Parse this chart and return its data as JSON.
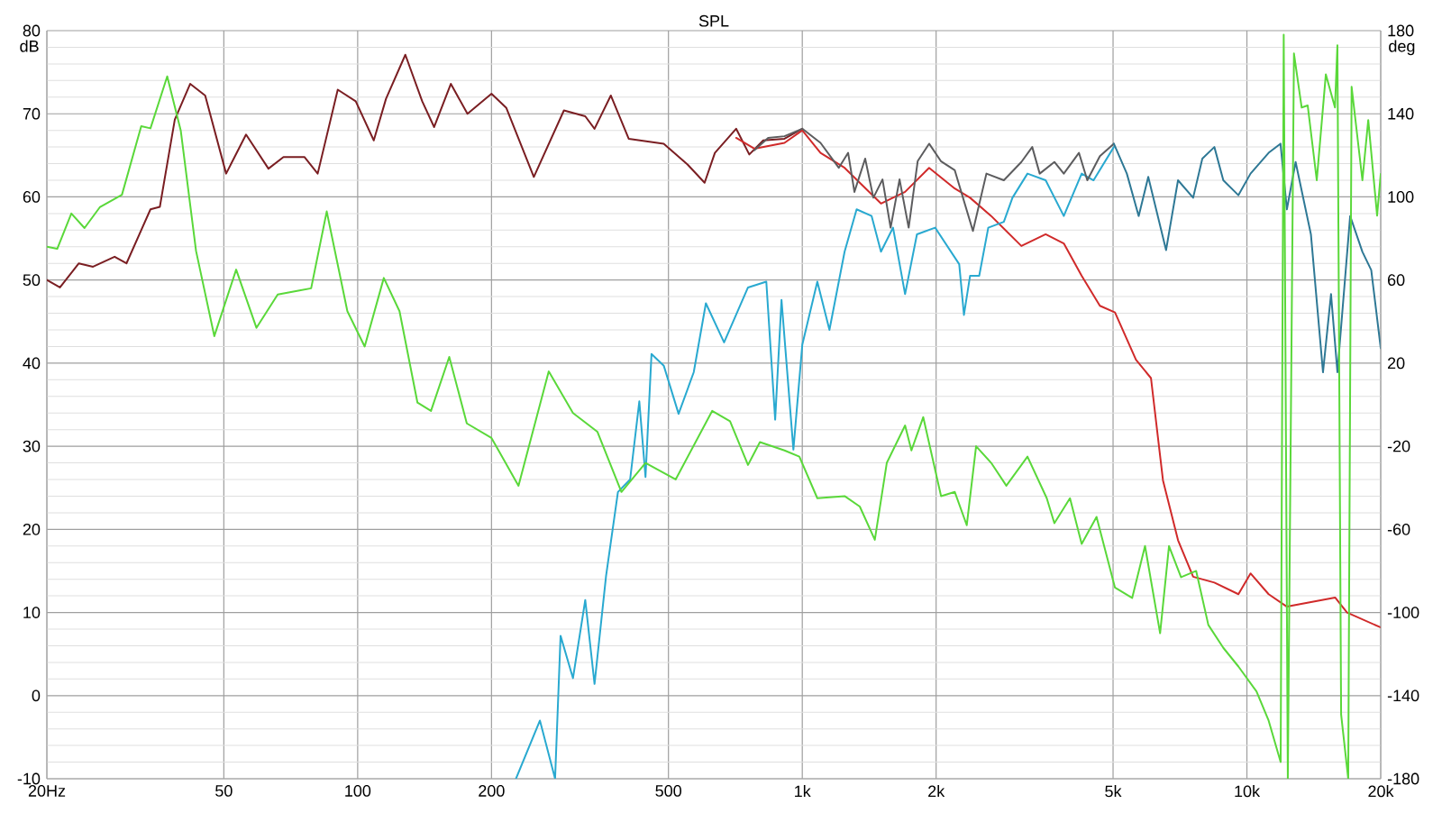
{
  "chart_data": {
    "type": "line",
    "title": "SPL",
    "ylabel": "dB",
    "y2label": "deg",
    "log": "x",
    "grid": true,
    "marker": "none",
    "line_style": "solid",
    "xlim": [
      20,
      20000
    ],
    "xticks": [
      {
        "value": 20,
        "label": "20Hz"
      },
      {
        "value": 50,
        "label": "50"
      },
      {
        "value": 100,
        "label": "100"
      },
      {
        "value": 200,
        "label": "200"
      },
      {
        "value": 500,
        "label": "500"
      },
      {
        "value": 1000,
        "label": "1k"
      },
      {
        "value": 2000,
        "label": "2k"
      },
      {
        "value": 5000,
        "label": "5k"
      },
      {
        "value": 10000,
        "label": "10k"
      },
      {
        "value": 20000,
        "label": "20k"
      }
    ],
    "ylim": [
      -10,
      80
    ],
    "yticks": [
      -10,
      0,
      10,
      20,
      30,
      40,
      50,
      60,
      70,
      80
    ],
    "y2lim": [
      -180,
      180
    ],
    "y2ticks": [
      -180,
      -140,
      -100,
      -60,
      -20,
      20,
      60,
      100,
      140,
      180
    ],
    "series": [
      {
        "color": "#7a1e22",
        "x": [
          20,
          21.4,
          23.6,
          25.4,
          28.4,
          30.2,
          34.2,
          35.9,
          38.8,
          42,
          45.4,
          50.6,
          56.1,
          63,
          68.1,
          75.9,
          81.3,
          90.2,
          99,
          108.7,
          115.8,
          128,
          139.7,
          148.6,
          162,
          176.6,
          200,
          216,
          249,
          291,
          325,
          341,
          371,
          407,
          488,
          552,
          603,
          636,
          710,
          760,
          817,
          912,
          1000
        ],
        "values": [
          50,
          49.1,
          52,
          51.6,
          52.8,
          52,
          58.5,
          58.8,
          69.3,
          73.6,
          72.2,
          62.8,
          67.5,
          63.4,
          64.8,
          64.8,
          62.8,
          72.9,
          71.5,
          66.8,
          71.8,
          77.1,
          71.5,
          68.4,
          73.6,
          70,
          72.4,
          70.7,
          62.4,
          70.4,
          69.7,
          68.2,
          72.2,
          67,
          66.4,
          63.9,
          61.7,
          65.3,
          68.2,
          65.1,
          66.8,
          67,
          68.2
        ]
      },
      {
        "color": "#d02a2a",
        "x": [
          710,
          780,
          912,
          1000,
          1099,
          1245,
          1503,
          1703,
          1929,
          2203,
          2384,
          2660,
          3110,
          3527,
          3874,
          4250,
          4670,
          5050,
          5630,
          6085,
          6475,
          7000,
          7570,
          8450,
          9570,
          10190,
          11190,
          12300,
          15790,
          16800,
          20000
        ],
        "values": [
          67.1,
          65.8,
          66.5,
          68,
          65.3,
          63.5,
          59.2,
          60.6,
          63.5,
          61,
          59.9,
          57.7,
          54.1,
          55.5,
          54.4,
          50.5,
          46.9,
          46.1,
          40.4,
          38.2,
          25.9,
          18.7,
          14.3,
          13.6,
          12.2,
          14.7,
          12.2,
          10.7,
          11.8,
          10,
          8.2
        ]
      },
      {
        "color": "#29a9d0",
        "x": [
          227,
          257,
          278,
          286,
          305,
          325,
          341,
          362,
          385,
          410,
          430,
          444,
          458,
          488,
          527,
          570,
          607,
          667,
          755,
          830,
          869,
          898,
          955,
          1000,
          1081,
          1151,
          1245,
          1325,
          1432,
          1503,
          1600,
          1703,
          1811,
          1990,
          2254,
          2310,
          2384,
          2500,
          2620,
          2840,
          2970,
          3210,
          3527,
          3874,
          4250,
          4520,
          5020
        ],
        "values": [
          -10,
          -3,
          -10,
          7.2,
          2.1,
          11.5,
          1.4,
          14.4,
          24.5,
          26,
          35.4,
          26.3,
          41.1,
          39.7,
          33.9,
          38.9,
          47.2,
          42.5,
          49.1,
          49.8,
          33.2,
          47.6,
          29.6,
          42.2,
          49.8,
          44,
          53.4,
          58.5,
          57.7,
          53.4,
          56.3,
          48.3,
          55.5,
          56.3,
          51.9,
          45.8,
          50.5,
          50.5,
          56.3,
          57,
          59.9,
          62.8,
          62,
          57.7,
          62.8,
          62,
          66
        ]
      },
      {
        "color": "#5c5c5e",
        "x": [
          780,
          838,
          912,
          1000,
          1099,
          1208,
          1268,
          1310,
          1385,
          1445,
          1515,
          1580,
          1655,
          1735,
          1818,
          1929,
          2050,
          2203,
          2420,
          2595,
          2840,
          3110,
          3290,
          3420,
          3690,
          3874,
          4190,
          4376,
          4670,
          5020
        ],
        "values": [
          65.6,
          67.1,
          67.3,
          68.2,
          66.5,
          63.5,
          65.3,
          60.6,
          64.6,
          59.9,
          62.1,
          56.3,
          62.1,
          56.3,
          64.3,
          66.4,
          64.3,
          63.2,
          55.9,
          62.8,
          62,
          64.2,
          66,
          62.8,
          64.2,
          62.8,
          65.3,
          62,
          64.9,
          66.4
        ]
      },
      {
        "color": "#2e7895",
        "x": [
          5020,
          5370,
          5710,
          6000,
          6580,
          7000,
          7570,
          7940,
          8450,
          8850,
          9570,
          10190,
          11190,
          11900,
          12300,
          12870,
          13930,
          14830,
          15460,
          15980,
          17070,
          18190,
          19040,
          20000
        ],
        "values": [
          66.4,
          62.8,
          57.7,
          62.4,
          53.6,
          62,
          59.9,
          64.6,
          66,
          62,
          60.2,
          62.8,
          65.3,
          66.4,
          58.5,
          64.2,
          55.5,
          38.9,
          48.3,
          38.9,
          57.7,
          53.4,
          51.2,
          41.8
        ]
      },
      {
        "color": "#5ad83a",
        "axis": "y2",
        "x": [
          20,
          21.1,
          22.7,
          24.3,
          26.3,
          29.5,
          32.6,
          34.2,
          37.3,
          40,
          43.3,
          47.6,
          53.3,
          59.2,
          66.1,
          74,
          78.6,
          85.2,
          94.8,
          103.7,
          114.5,
          124.2,
          136.3,
          146.2,
          160.7,
          176,
          200,
          230,
          269,
          305,
          346,
          392,
          444,
          519,
          627,
          688,
          755,
          803,
          912,
          985,
          1081,
          1245,
          1347,
          1456,
          1549,
          1703,
          1760,
          1871,
          2052,
          2203,
          2344,
          2460,
          2660,
          2877,
          3210,
          3547,
          3690,
          4000,
          4250,
          4590,
          5050,
          5520,
          5900,
          6380,
          6680,
          7110,
          7690,
          8190,
          8850,
          9570,
          10510,
          11190,
          11910,
          12100,
          12360,
          12760,
          13280,
          13700,
          14360,
          15050,
          15780,
          15980,
          16290,
          16900,
          17200,
          18190,
          18750,
          19630,
          20000
        ],
        "values": [
          76,
          75,
          92,
          85,
          95,
          101,
          134,
          133,
          158,
          132,
          74,
          33,
          65,
          37,
          53,
          55,
          56,
          93,
          45,
          28,
          61,
          45,
          1,
          -3,
          23,
          -9,
          -16,
          -39,
          16,
          -4,
          -13,
          -42,
          -28,
          -36,
          -3,
          -8,
          -29,
          -18,
          -22,
          -25,
          -45,
          -44,
          -49,
          -65,
          -28,
          -10,
          -22,
          -6,
          -44,
          -42,
          -58,
          -20,
          -28,
          -39,
          -25,
          -45,
          -57,
          -45,
          -67,
          -54,
          -88,
          -93,
          -68,
          -110,
          -68,
          -83,
          -80,
          -106,
          -117,
          -126,
          -138,
          -152,
          -172,
          178,
          -180,
          169,
          143,
          144,
          108,
          159,
          143,
          173,
          -149,
          -180,
          153,
          108,
          137,
          91,
          111
        ]
      }
    ]
  }
}
